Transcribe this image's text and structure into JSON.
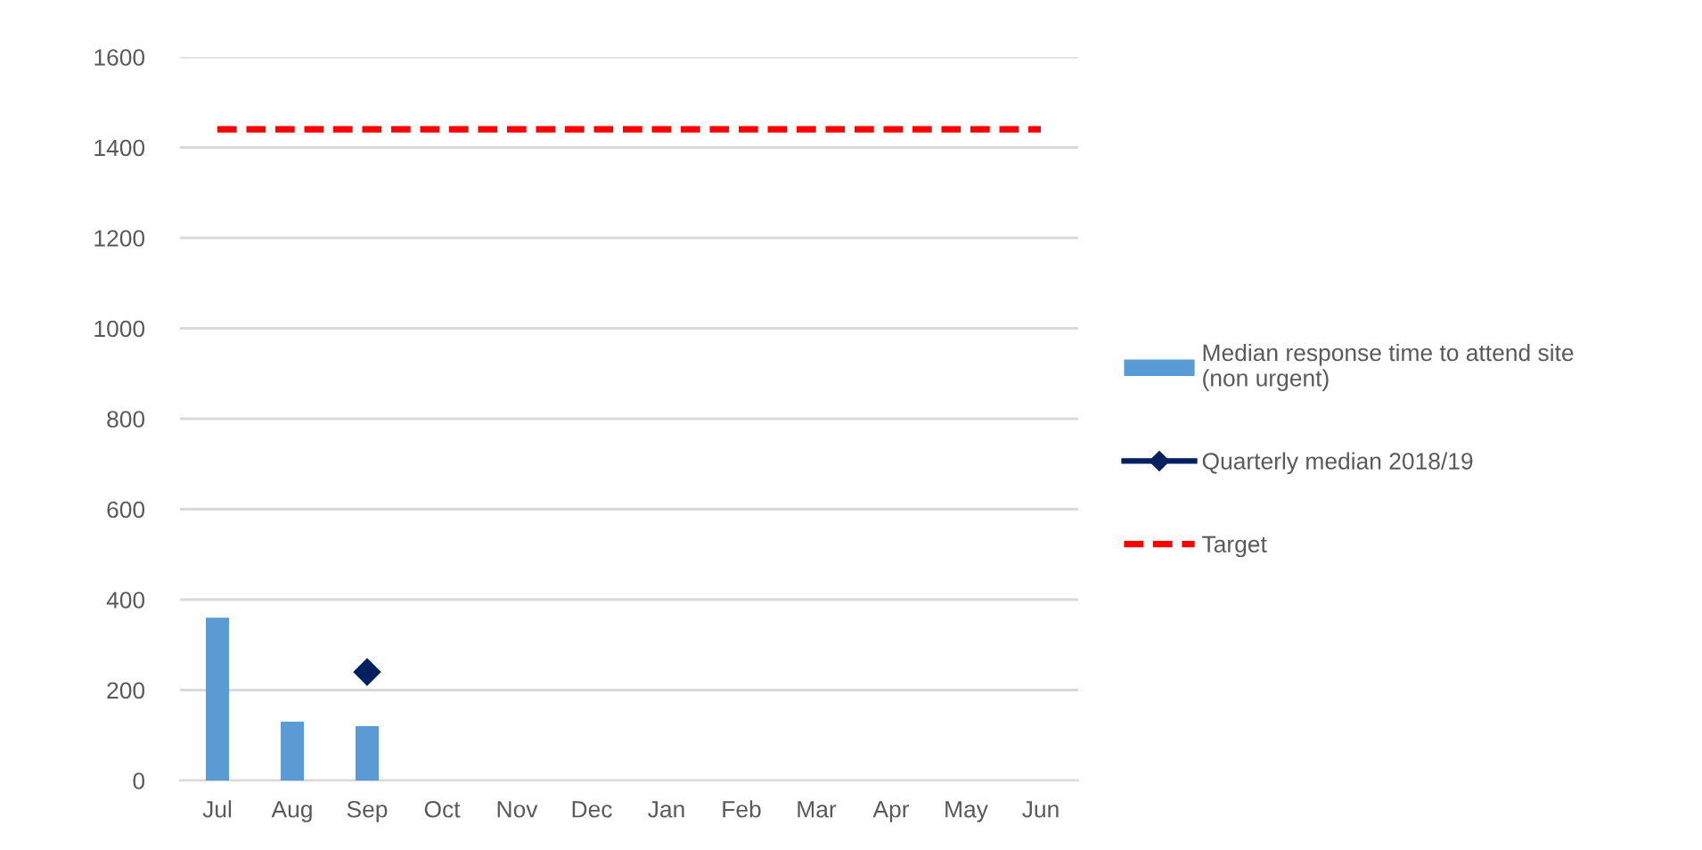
{
  "chart_data": {
    "type": "bar",
    "categories": [
      "Jul",
      "Aug",
      "Sep",
      "Oct",
      "Nov",
      "Dec",
      "Jan",
      "Feb",
      "Mar",
      "Apr",
      "May",
      "Jun"
    ],
    "series": [
      {
        "name": "Median response time to attend site\n(non urgent)",
        "color": "#5b9bd5",
        "values": [
          360,
          130,
          120,
          null,
          null,
          null,
          null,
          null,
          null,
          null,
          null,
          null
        ]
      },
      {
        "name": "Quarterly median 2018/19",
        "type": "line",
        "color": "#002060",
        "marker": "diamond",
        "line_style": "solid",
        "values": [
          null,
          null,
          240,
          null,
          null,
          null,
          null,
          null,
          null,
          null,
          null,
          null
        ]
      },
      {
        "name": "Target",
        "type": "line",
        "color": "#ff0000",
        "marker": "none",
        "line_style": "dashed",
        "values": [
          1440,
          1440,
          1440,
          1440,
          1440,
          1440,
          1440,
          1440,
          1440,
          1440,
          1440,
          1440
        ]
      }
    ],
    "ylim": [
      0,
      1600
    ],
    "yticks": [
      0,
      200,
      400,
      600,
      800,
      1000,
      1200,
      1400,
      1600
    ],
    "grid": "y",
    "legend": "right"
  }
}
